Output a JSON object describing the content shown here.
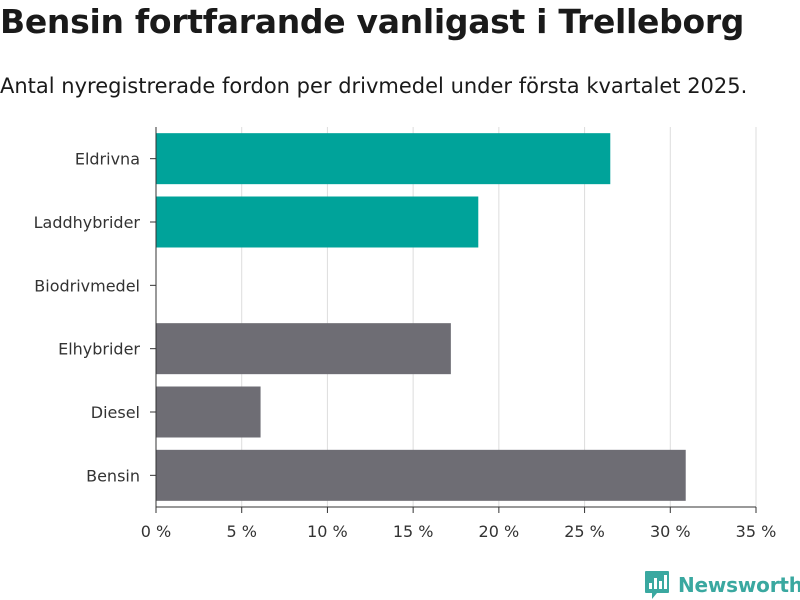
{
  "title": "Bensin fortfarande vanligast i Trelleborg",
  "subtitle": "Antal nyregistrerade fordon per drivmedel under första kvartalet 2025.",
  "brand": {
    "name": "Newsworthy",
    "icon": "newsworthy-logo-icon"
  },
  "colors": {
    "highlight": "#00a39a",
    "base": "#6e6d74",
    "grid": "#dddddd",
    "axis": "#333333"
  },
  "chart_data": {
    "type": "bar",
    "orientation": "horizontal",
    "categories": [
      "Eldrivna",
      "Laddhybrider",
      "Biodrivmedel",
      "Elhybrider",
      "Diesel",
      "Bensin"
    ],
    "values": [
      26.5,
      18.8,
      0,
      17.2,
      6.1,
      30.9
    ],
    "highlighted": [
      "Eldrivna",
      "Laddhybrider"
    ],
    "xlim": [
      0,
      35
    ],
    "xticks": [
      0,
      5,
      10,
      15,
      20,
      25,
      30,
      35
    ],
    "xtick_labels": [
      "0 %",
      "5 %",
      "10 %",
      "15 %",
      "20 %",
      "25 %",
      "30 %",
      "35 %"
    ],
    "grid": true,
    "xlabel": "",
    "ylabel": ""
  }
}
